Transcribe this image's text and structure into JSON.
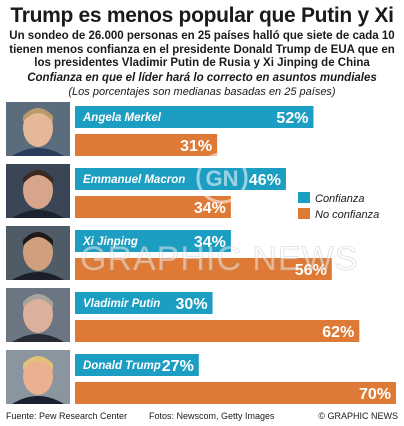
{
  "title": "Trump es menos popular que Putin y Xi",
  "subtitle": "Un sondeo de 26.000 personas en 25 países halló que siete de cada 10 tienen menos confianza en el presidente Donald Trump de EUA que en los presidentes Vladimir Putin de Rusia y Xi Jinping de China",
  "chart_heading": "Confianza en que el líder hará lo correcto en asuntos mundiales",
  "chart_note": "(Los porcentajes son medianas basadas en 25 países)",
  "footer": {
    "source": "Fuente: Pew Research Center",
    "photos": "Fotos: Newscom, Getty Images",
    "credit": "© GRAPHIC NEWS"
  },
  "watermark": "GRAPHIC NEWS",
  "colors": {
    "confianza": "#1c9ec2",
    "no_confianza": "#de7a35"
  },
  "chart_data": {
    "type": "bar",
    "orientation": "horizontal",
    "categories": [
      "Angela Merkel",
      "Emmanuel Macron",
      "Xi Jinping",
      "Vladimir Putin",
      "Donald Trump"
    ],
    "series": [
      {
        "name": "Confianza",
        "values": [
          52,
          46,
          34,
          30,
          27
        ]
      },
      {
        "name": "No confianza",
        "values": [
          31,
          34,
          56,
          62,
          70
        ]
      }
    ],
    "value_suffix": "%",
    "xlim": [
      0,
      70
    ],
    "legend_position": "right",
    "grid": false
  }
}
